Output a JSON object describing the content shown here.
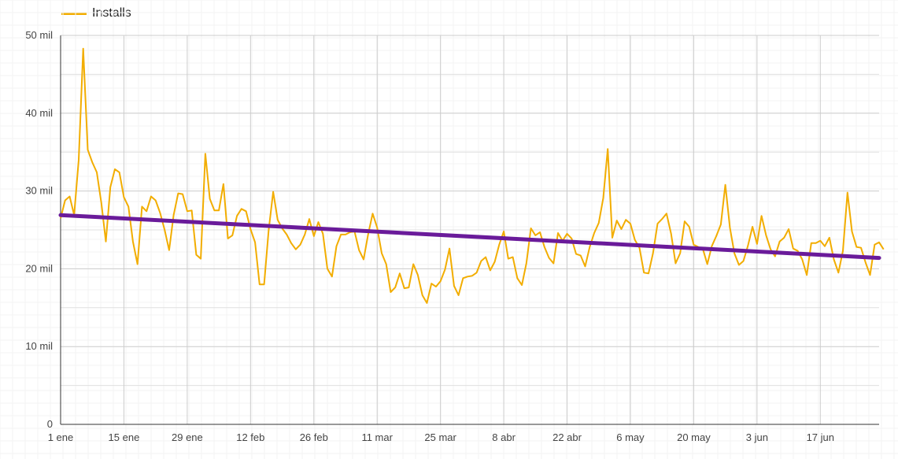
{
  "chart_data": {
    "type": "line",
    "title": "",
    "xlabel": "",
    "ylabel": "",
    "ylim": [
      0,
      50000
    ],
    "yticks": [
      {
        "value": 0,
        "label": "0"
      },
      {
        "value": 10000,
        "label": "10 mil"
      },
      {
        "value": 20000,
        "label": "20 mil"
      },
      {
        "value": 30000,
        "label": "30 mil"
      },
      {
        "value": 40000,
        "label": "40 mil"
      },
      {
        "value": 50000,
        "label": "50 mil"
      }
    ],
    "xticks": [
      {
        "day": 1,
        "label": "1 ene"
      },
      {
        "day": 15,
        "label": "15 ene"
      },
      {
        "day": 29,
        "label": "29 ene"
      },
      {
        "day": 43,
        "label": "12 feb"
      },
      {
        "day": 57,
        "label": "26 feb"
      },
      {
        "day": 71,
        "label": "11 mar"
      },
      {
        "day": 85,
        "label": "25 mar"
      },
      {
        "day": 99,
        "label": "8 abr"
      },
      {
        "day": 113,
        "label": "22 abr"
      },
      {
        "day": 127,
        "label": "6 may"
      },
      {
        "day": 141,
        "label": "20 may"
      },
      {
        "day": 155,
        "label": "3 jun"
      },
      {
        "day": 169,
        "label": "17 jun"
      }
    ],
    "x_start_day": 1,
    "x_end_day": 182,
    "grid": true,
    "legend": "top-left",
    "series": [
      {
        "name": "Installs",
        "color": "#f2ad00",
        "values": [
          26500,
          28800,
          29300,
          26900,
          34000,
          48300,
          35300,
          33700,
          32400,
          28500,
          23500,
          30500,
          32800,
          32400,
          29200,
          28000,
          23500,
          20600,
          28000,
          27400,
          29300,
          28800,
          27200,
          25000,
          22400,
          26900,
          29700,
          29600,
          27400,
          27500,
          21800,
          21300,
          34800,
          29000,
          27500,
          27500,
          30900,
          23900,
          24300,
          26800,
          27700,
          27400,
          25100,
          23400,
          18000,
          18000,
          24900,
          29900,
          26300,
          25200,
          24400,
          23300,
          22500,
          23100,
          24400,
          26400,
          24200,
          26000,
          24500,
          20000,
          19000,
          22900,
          24400,
          24400,
          24700,
          24800,
          22400,
          21200,
          24400,
          27100,
          25300,
          22000,
          20600,
          17000,
          17600,
          19400,
          17500,
          17600,
          20600,
          19200,
          16600,
          15600,
          18100,
          17700,
          18400,
          19900,
          22600,
          17800,
          16600,
          18800,
          19000,
          19100,
          19500,
          21000,
          21500,
          19800,
          20900,
          23100,
          24800,
          21300,
          21500,
          18800,
          17900,
          20700,
          25200,
          24300,
          24700,
          22800,
          21400,
          20700,
          24600,
          23600,
          24500,
          23900,
          21900,
          21700,
          20300,
          22800,
          24600,
          25900,
          29100,
          35400,
          24000,
          26200,
          25100,
          26300,
          25800,
          23700,
          22700,
          19500,
          19400,
          22000,
          25800,
          26400,
          27100,
          24500,
          20700,
          22000,
          26100,
          25400,
          23100,
          22800,
          22600,
          20600,
          22900,
          24200,
          25700,
          30800,
          25300,
          22000,
          20500,
          21000,
          23000,
          25400,
          23200,
          26800,
          24300,
          22500,
          21600,
          23500,
          24000,
          25100,
          22600,
          22300,
          21200,
          19200,
          23300,
          23300,
          23600,
          22900,
          24000,
          21200,
          19500,
          22300,
          29800,
          24800,
          22800,
          22700,
          20800,
          19200,
          23100,
          23400,
          22500
        ]
      }
    ],
    "trendline": {
      "color": "#6a1b9a",
      "start": 26900,
      "end": 21400
    }
  }
}
